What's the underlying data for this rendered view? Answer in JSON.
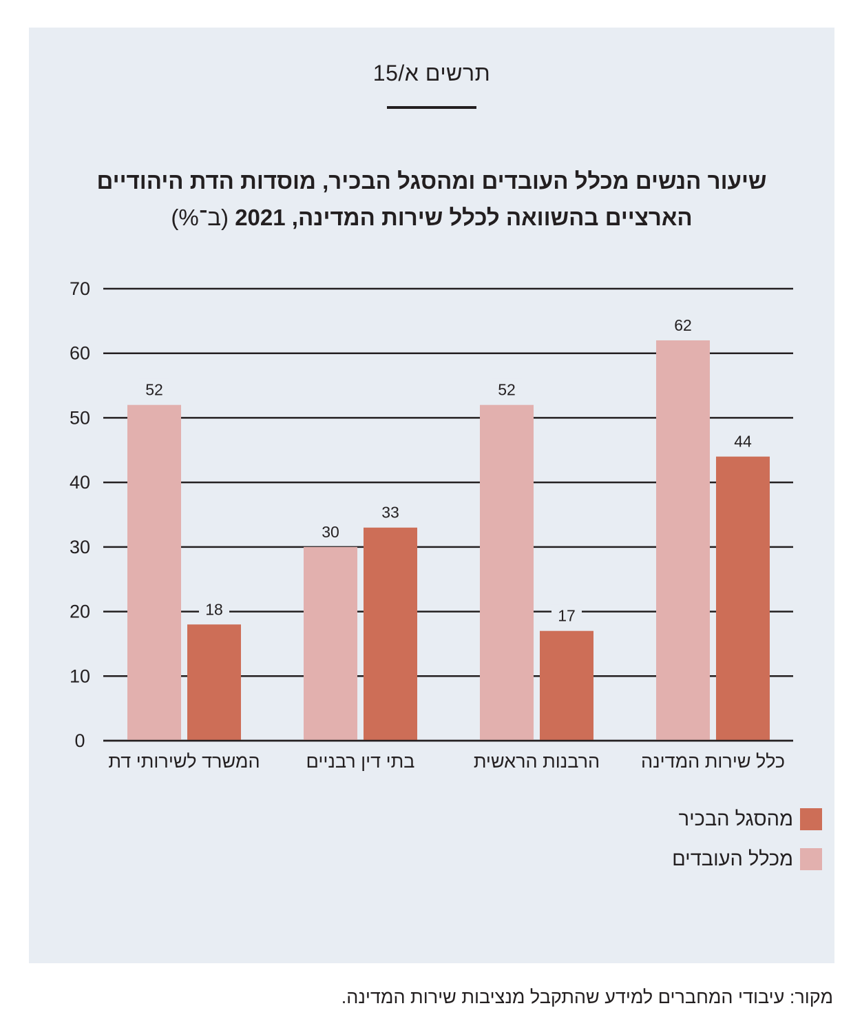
{
  "figure_label": "תרשים א/15",
  "title_line1": "שיעור הנשים מכלל העובדים ומהסגל הבכיר, מוסדות הדת היהודיים",
  "title_line2_bold": "הארציים בהשוואה לכלל שירות המדינה, 2021",
  "title_line2_unit": "(ב־%)",
  "source": "מקור: עיבודי המחברים למידע שהתקבל מנציבות שירות המדינה.",
  "colors": {
    "all_employees": "#e2b0ae",
    "senior_staff": "#cd6e57",
    "background": "#e8edf3"
  },
  "chart_data": {
    "type": "bar",
    "categories": [
      "כלל שירות המדינה",
      "הרבנות הראשית",
      "בתי דין רבניים",
      "המשרד לשירותי דת"
    ],
    "series": [
      {
        "name": "מכלל העובדים",
        "values": [
          62,
          52,
          30,
          52
        ]
      },
      {
        "name": "מהסגל הבכיר",
        "values": [
          44,
          17,
          33,
          18
        ]
      }
    ],
    "ylim": [
      0,
      70
    ],
    "yticks": [
      0,
      10,
      20,
      30,
      40,
      50,
      60,
      70
    ],
    "grid": true,
    "legend": "bottom-right"
  }
}
